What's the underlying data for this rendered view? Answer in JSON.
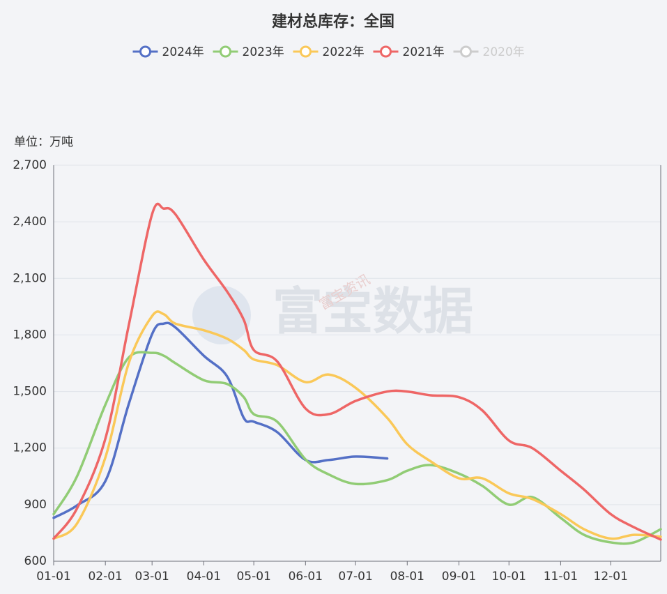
{
  "chart_data": {
    "type": "line",
    "title": "建材总库存：全国",
    "y_axis_label": "单位：万吨",
    "watermark": "富宝数据",
    "watermark_small": "富宝资讯",
    "x": [
      "01-01",
      "01-15",
      "02-01",
      "02-15",
      "03-01",
      "03-08",
      "03-15",
      "04-01",
      "04-15",
      "04-25",
      "05-01",
      "05-15",
      "06-01",
      "06-15",
      "07-01",
      "07-20",
      "08-01",
      "08-15",
      "09-01",
      "09-15",
      "10-01",
      "10-15",
      "11-01",
      "11-15",
      "12-01",
      "12-15",
      "12-31"
    ],
    "xlim": [
      "01-01",
      "12-31"
    ],
    "xticks": [
      "01-01",
      "02-01",
      "03-01",
      "04-01",
      "05-01",
      "06-01",
      "07-01",
      "08-01",
      "09-01",
      "10-01",
      "11-01",
      "12-01"
    ],
    "ylim": [
      600,
      2700
    ],
    "yticks": [
      600,
      900,
      {
        "value": 1200,
        "label": "1,200"
      },
      {
        "value": 1500,
        "label": "1,500"
      },
      {
        "value": 1800,
        "label": "1,800"
      },
      {
        "value": 2100,
        "label": "2,100"
      },
      {
        "value": 2400,
        "label": "2,400"
      },
      {
        "value": 2700,
        "label": "2,700"
      }
    ],
    "grid": true,
    "series": [
      {
        "name": "2024年",
        "color": "#5470c6",
        "values": [
          830,
          896,
          1025,
          1433,
          1804,
          1860,
          1840,
          1690,
          1580,
          1360,
          1340,
          1285,
          1137,
          1137,
          1155,
          1145,
          null,
          null,
          null,
          null,
          null,
          null,
          null,
          null,
          null,
          null,
          null
        ]
      },
      {
        "name": "2023年",
        "color": "#91cc75",
        "values": [
          850,
          1050,
          1430,
          1680,
          1705,
          1690,
          1650,
          1560,
          1540,
          1470,
          1380,
          1340,
          1140,
          1060,
          1010,
          1030,
          1080,
          1110,
          1065,
          1000,
          900,
          940,
          830,
          740,
          700,
          700,
          770
        ]
      },
      {
        "name": "2022年",
        "color": "#fac858",
        "values": [
          720,
          800,
          1150,
          1650,
          1900,
          1910,
          1860,
          1825,
          1780,
          1720,
          1670,
          1640,
          1550,
          1590,
          1520,
          1360,
          1220,
          1130,
          1040,
          1040,
          960,
          930,
          850,
          770,
          720,
          740,
          730
        ]
      },
      {
        "name": "2021年",
        "color": "#ee6666",
        "values": [
          720,
          880,
          1250,
          1850,
          2440,
          2470,
          2440,
          2200,
          2030,
          1880,
          1720,
          1660,
          1410,
          1380,
          1450,
          1500,
          1500,
          1480,
          1470,
          1400,
          1240,
          1200,
          1080,
          980,
          850,
          780,
          715
        ]
      },
      {
        "name": "2020年",
        "color": "#cccccc",
        "values": [
          null,
          null,
          null,
          null,
          null,
          null,
          null,
          null,
          null,
          null,
          null,
          null,
          null,
          null,
          null,
          null,
          null,
          null,
          null,
          null,
          null,
          null,
          null,
          null,
          null,
          null,
          null
        ]
      }
    ]
  }
}
